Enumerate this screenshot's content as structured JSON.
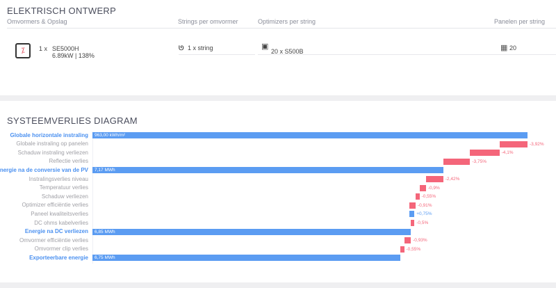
{
  "electrical": {
    "title": "ELEKTRISCH ONTWERP",
    "headers": [
      "Omvormers & Opslag",
      "Strings per omvormer",
      "Optimizers per string",
      "Panelen per string"
    ],
    "inverter": {
      "qty": "1 x",
      "model": "SE5000H",
      "spec": "6.89kW | 138%",
      "icon": "inverter-icon"
    },
    "strings": {
      "icon": "string-icon",
      "value": "1 x string"
    },
    "optimizers": {
      "icon": "optimizer-icon",
      "value": "20 x S500B"
    },
    "panels": {
      "icon": "panel-grid-icon",
      "value": "20"
    }
  },
  "losses": {
    "title": "SYSTEEMVERLIES DIAGRAM",
    "colors": {
      "total": "#5b9cf2",
      "loss": "#f4667a",
      "gain": "#5b9cf2"
    },
    "chart_data": {
      "type": "waterfall",
      "rows": [
        {
          "label": "Globale horizontale instraling",
          "kind": "total",
          "text": "963,00 kWh/m²"
        },
        {
          "label": "Globale instraling op panelen",
          "kind": "step",
          "pct": -3.92,
          "text": "-3,92%"
        },
        {
          "label": "Schaduw instraling verliezen",
          "kind": "step",
          "pct": -4.1,
          "text": "-4,1%"
        },
        {
          "label": "Reflectie verlies",
          "kind": "step",
          "pct": -3.75,
          "text": "-3,75%"
        },
        {
          "label": "nergie na de conversie van de PV",
          "kind": "total",
          "text": "7,17 MWh"
        },
        {
          "label": "Instralingsverlies niveau",
          "kind": "step",
          "pct": -2.42,
          "text": "-2,42%"
        },
        {
          "label": "Temperatuur verlies",
          "kind": "step",
          "pct": -0.9,
          "text": "-0,9%"
        },
        {
          "label": "Schaduw verliezen",
          "kind": "step",
          "pct": -0.55,
          "text": "-0,55%"
        },
        {
          "label": "Optimizer efficiëntie verlies",
          "kind": "step",
          "pct": -0.91,
          "text": "-0,91%"
        },
        {
          "label": "Paneel kwaliteitsverlies",
          "kind": "step",
          "pct": 0.75,
          "text": "+0,75%"
        },
        {
          "label": "DC ohms kabelverlies",
          "kind": "step",
          "pct": -0.5,
          "text": "-0,5%"
        },
        {
          "label": "Energie na DC verliezen",
          "kind": "total",
          "text": "6,85 MWh"
        },
        {
          "label": "Omvormer efficiëntie verlies",
          "kind": "step",
          "pct": -0.93,
          "text": "-0,93%"
        },
        {
          "label": "Omvormer clip verlies",
          "kind": "step",
          "pct": -0.55,
          "text": "-0,55%"
        },
        {
          "label": "Exporteerbare energie",
          "kind": "total",
          "text": "6,75 MWh"
        }
      ]
    }
  }
}
